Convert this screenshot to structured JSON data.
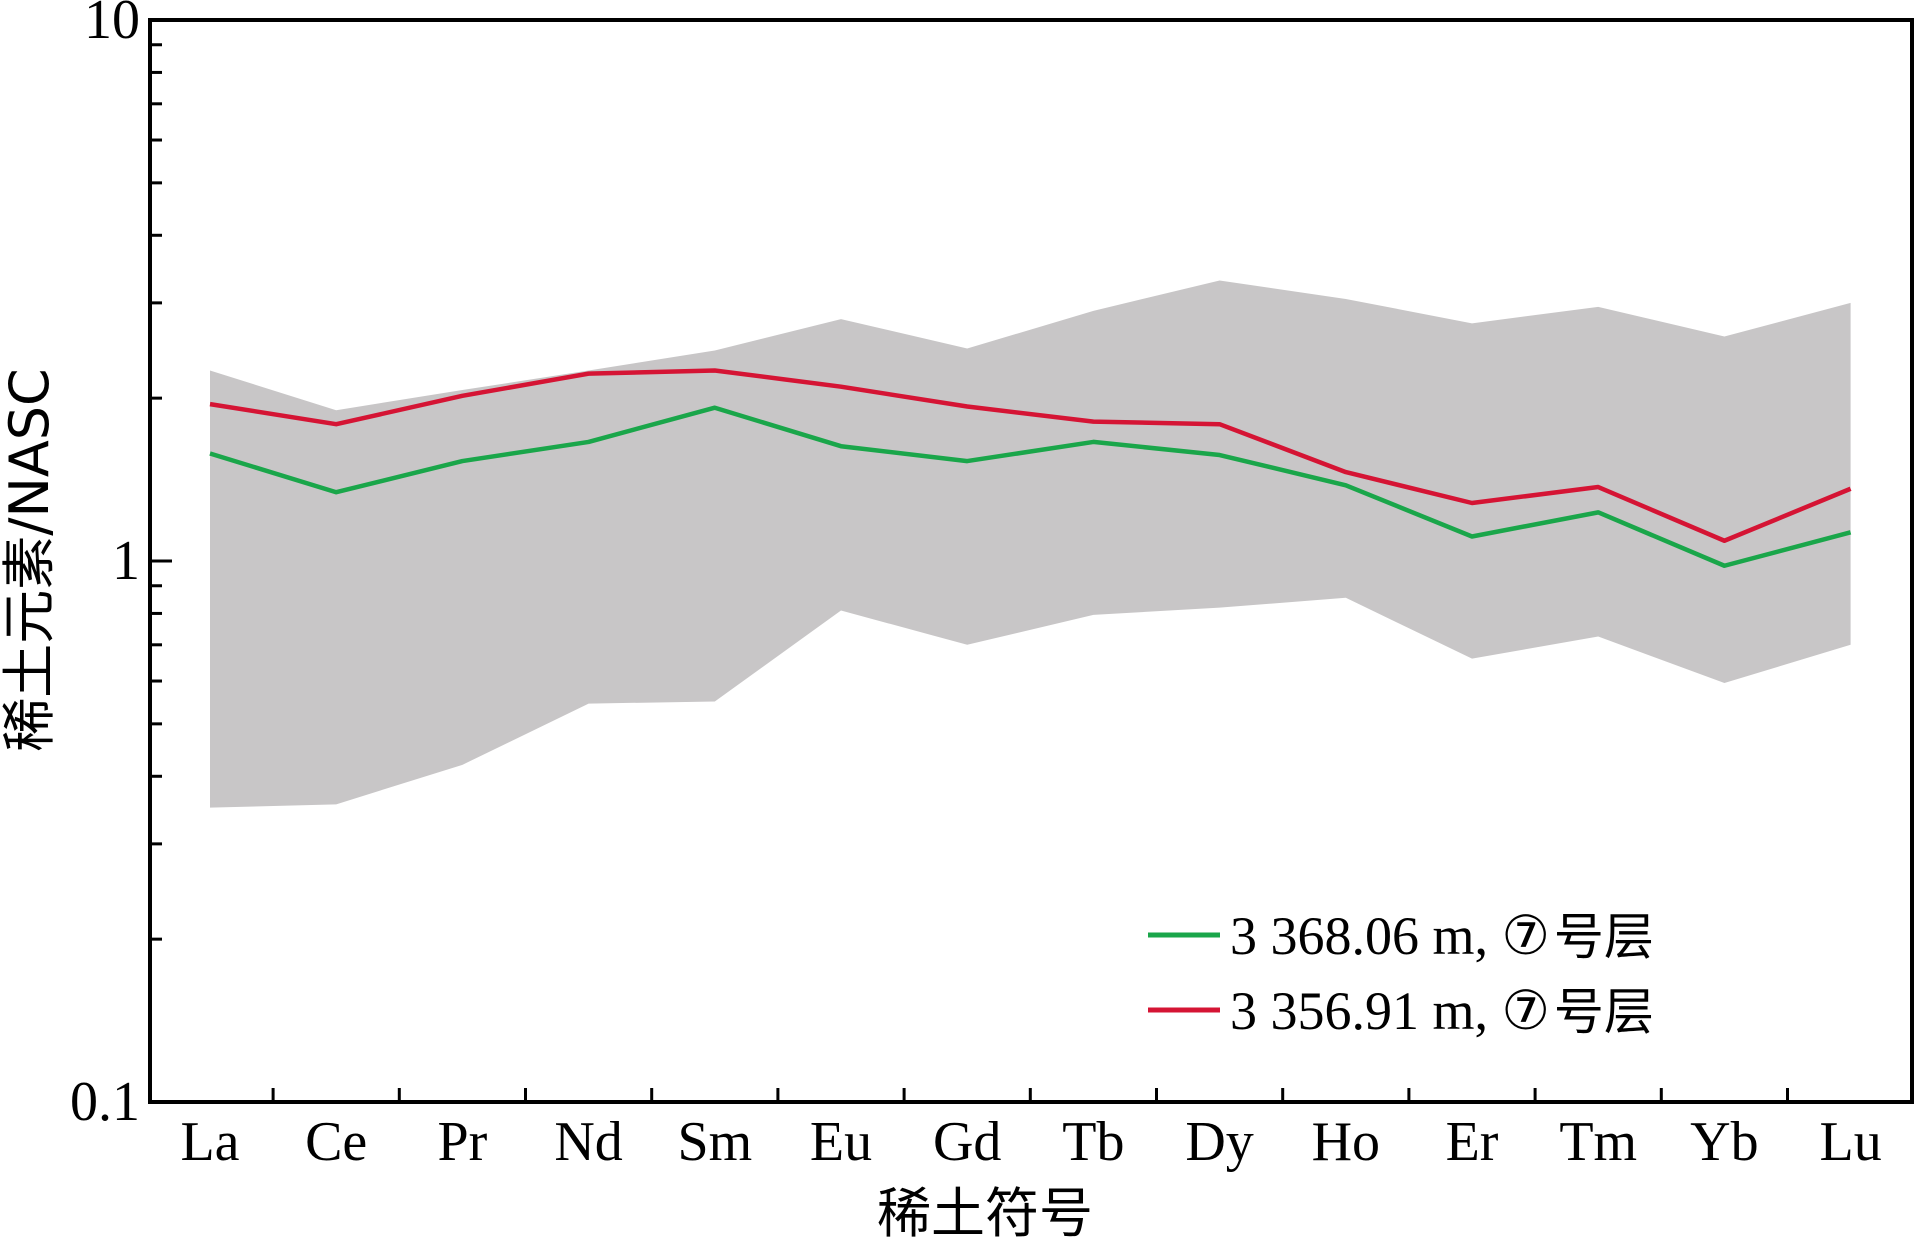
{
  "chart_data": {
    "type": "line",
    "xlabel": "稀土符号",
    "ylabel": "稀土元素/NASC",
    "yscale": "log",
    "ylim": [
      0.1,
      10
    ],
    "yticks": [
      {
        "value": 0.1,
        "label": "0.1"
      },
      {
        "value": 1,
        "label": "1"
      },
      {
        "value": 10,
        "label": "10"
      }
    ],
    "categories": [
      "La",
      "Ce",
      "Pr",
      "Nd",
      "Sm",
      "Eu",
      "Gd",
      "Tb",
      "Dy",
      "Ho",
      "Er",
      "Tm",
      "Yb",
      "Lu"
    ],
    "range_band": {
      "upper": [
        2.25,
        1.9,
        2.07,
        2.25,
        2.45,
        2.8,
        2.47,
        2.9,
        3.3,
        3.05,
        2.75,
        2.95,
        2.6,
        3.0
      ],
      "lower": [
        0.35,
        0.355,
        0.42,
        0.545,
        0.55,
        0.81,
        0.7,
        0.795,
        0.82,
        0.855,
        0.66,
        0.725,
        0.595,
        0.7
      ],
      "color": "#c8c6c7"
    },
    "series": [
      {
        "name": "3 368.06 m, ⑦号层",
        "color": "#1aa64a",
        "values": [
          1.58,
          1.34,
          1.53,
          1.66,
          1.92,
          1.63,
          1.53,
          1.66,
          1.57,
          1.38,
          1.11,
          1.23,
          0.98,
          1.13
        ]
      },
      {
        "name": "3 356.91 m, ⑦号层",
        "color": "#d51434",
        "values": [
          1.95,
          1.79,
          2.02,
          2.22,
          2.25,
          2.1,
          1.93,
          1.81,
          1.79,
          1.46,
          1.28,
          1.37,
          1.09,
          1.36
        ]
      }
    ],
    "legend": {
      "position": "bottom-right",
      "entries": [
        {
          "name_main": "3 368.06 m, ⑦",
          "name_cjk": "号层"
        },
        {
          "name_main": "3 356.91 m, ⑦",
          "name_cjk": "号层"
        }
      ]
    },
    "grid": false
  }
}
